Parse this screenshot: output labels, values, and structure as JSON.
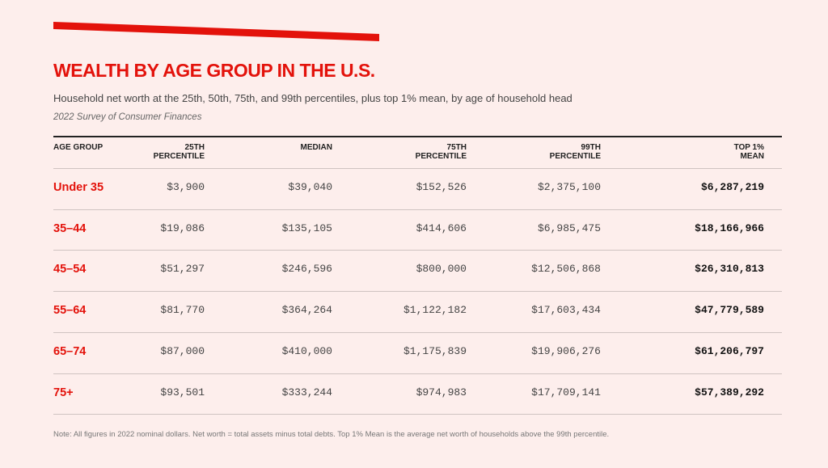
{
  "header": {
    "title": "WEALTH BY AGE GROUP IN THE U.S.",
    "subtitle": "Household net worth at the 25th, 50th, 75th, and 99th percentiles, plus top 1% mean, by age of household head",
    "source": "2022 Survey of Consumer Finances"
  },
  "table": {
    "columns": [
      "AGE GROUP",
      "25TH\nPERCENTILE",
      "MEDIAN",
      "75TH\nPERCENTILE",
      "99TH\nPERCENTILE",
      "TOP 1%\nMEAN"
    ],
    "rows": [
      [
        "Under 35",
        "$3,900",
        "$39,040",
        "$152,526",
        "$2,375,100",
        "$6,287,219"
      ],
      [
        "35–44",
        "$19,086",
        "$135,105",
        "$414,606",
        "$6,985,475",
        "$18,166,966"
      ],
      [
        "45–54",
        "$51,297",
        "$246,596",
        "$800,000",
        "$12,506,868",
        "$26,310,813"
      ],
      [
        "55–64",
        "$81,770",
        "$364,264",
        "$1,122,182",
        "$17,603,434",
        "$47,779,589"
      ],
      [
        "65–74",
        "$87,000",
        "$410,000",
        "$1,175,839",
        "$19,906,276",
        "$61,206,797"
      ],
      [
        "75+",
        "$93,501",
        "$333,244",
        "$974,983",
        "$17,709,141",
        "$57,389,292"
      ]
    ]
  },
  "note": "Note: All figures in 2022 nominal dollars. Net worth = total assets minus total debts. Top 1% Mean is the average net worth of households above the 99th percentile."
}
